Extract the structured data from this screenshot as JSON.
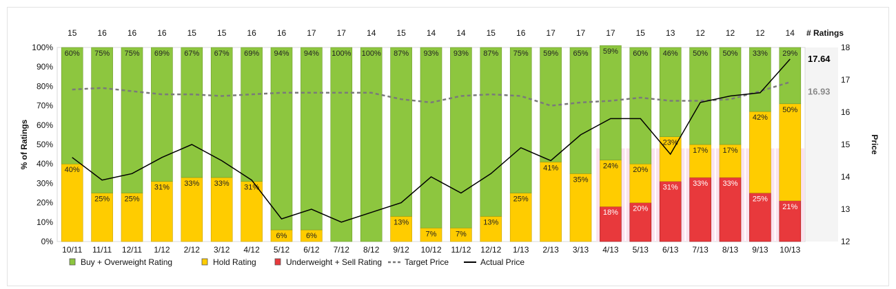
{
  "chart_data": {
    "type": "bar",
    "stacked": true,
    "categories": [
      "10/11",
      "11/11",
      "12/11",
      "1/12",
      "2/12",
      "3/12",
      "4/12",
      "5/12",
      "6/12",
      "7/12",
      "8/12",
      "9/12",
      "10/12",
      "11/12",
      "12/12",
      "1/13",
      "2/13",
      "3/13",
      "4/13",
      "5/13",
      "6/13",
      "7/13",
      "8/13",
      "9/13",
      "10/13"
    ],
    "num_ratings": [
      15,
      16,
      16,
      16,
      15,
      15,
      16,
      16,
      17,
      17,
      14,
      15,
      14,
      14,
      15,
      16,
      17,
      17,
      17,
      15,
      13,
      12,
      12,
      12,
      14
    ],
    "num_ratings_label": "# Ratings",
    "series": [
      {
        "name": "Buy + Overweight Rating",
        "color": "#8dc63f",
        "values": [
          60,
          75,
          75,
          69,
          67,
          67,
          69,
          94,
          94,
          100,
          100,
          87,
          93,
          93,
          87,
          75,
          59,
          65,
          59,
          60,
          46,
          50,
          50,
          33,
          29
        ],
        "labels": [
          "60%",
          "75%",
          "75%",
          "69%",
          "67%",
          "67%",
          "69%",
          "94%",
          "94%",
          "100%",
          "100%",
          "87%",
          "93%",
          "93%",
          "87%",
          "75%",
          "59%",
          "65%",
          "59%",
          "60%",
          "46%",
          "50%",
          "50%",
          "33%",
          "29%"
        ]
      },
      {
        "name": "Hold Rating",
        "color": "#ffcc00",
        "values": [
          40,
          25,
          25,
          31,
          33,
          33,
          31,
          6,
          6,
          0,
          0,
          13,
          7,
          7,
          13,
          25,
          41,
          35,
          24,
          20,
          23,
          17,
          17,
          42,
          50
        ],
        "labels": [
          "40%",
          "25%",
          "25%",
          "31%",
          "33%",
          "33%",
          "31%",
          "6%",
          "6%",
          "",
          "",
          "13%",
          "7%",
          "7%",
          "13%",
          "25%",
          "41%",
          "35%",
          "24%",
          "20%",
          "23%",
          "17%",
          "17%",
          "42%",
          "50%"
        ]
      },
      {
        "name": "Underweight + Sell Rating",
        "color": "#e8393c",
        "values": [
          0,
          0,
          0,
          0,
          0,
          0,
          0,
          0,
          0,
          0,
          0,
          0,
          0,
          0,
          0,
          0,
          0,
          0,
          18,
          20,
          31,
          33,
          33,
          25,
          21
        ],
        "labels": [
          "",
          "",
          "",
          "",
          "",
          "",
          "",
          "",
          "",
          "",
          "",
          "",
          "",
          "",
          "",
          "",
          "",
          "",
          "18%",
          "20%",
          "31%",
          "33%",
          "33%",
          "25%",
          "21%"
        ]
      }
    ],
    "target_price": {
      "name": "Target Price",
      "values": [
        16.7,
        16.75,
        16.65,
        16.55,
        16.55,
        16.5,
        16.55,
        16.6,
        16.6,
        16.6,
        16.6,
        16.4,
        16.3,
        16.5,
        16.55,
        16.5,
        16.2,
        16.3,
        16.35,
        16.45,
        16.35,
        16.35,
        16.4,
        16.65,
        16.93
      ]
    },
    "actual_price": {
      "name": "Actual Price",
      "values": [
        14.6,
        13.9,
        14.1,
        14.6,
        15.0,
        14.5,
        13.9,
        12.7,
        13.0,
        12.6,
        12.9,
        13.2,
        14.0,
        13.5,
        14.1,
        14.9,
        14.5,
        15.3,
        15.8,
        15.8,
        14.7,
        16.3,
        16.5,
        16.6,
        17.64
      ]
    },
    "target_price_label": "16.93",
    "actual_price_label": "17.64",
    "ylabel_left": "% of Ratings",
    "ylabel_right": "Price",
    "left_ticks": [
      "0%",
      "10%",
      "20%",
      "30%",
      "40%",
      "50%",
      "60%",
      "70%",
      "80%",
      "90%",
      "100%"
    ],
    "right_ticks": [
      "12",
      "13",
      "14",
      "15",
      "16",
      "17",
      "18"
    ],
    "ylim_left": [
      0,
      100
    ],
    "ylim_right": [
      12,
      18
    ],
    "legend": {
      "position": "bottom",
      "items": [
        {
          "label": "Buy + Overweight Rating",
          "kind": "box",
          "color": "#8dc63f"
        },
        {
          "label": "Hold Rating",
          "kind": "box",
          "color": "#ffcc00"
        },
        {
          "label": "Underweight + Sell Rating",
          "kind": "box",
          "color": "#e8393c"
        },
        {
          "label": "Target Price",
          "kind": "dash",
          "color": "#777777"
        },
        {
          "label": "Actual Price",
          "kind": "line",
          "color": "#000000"
        }
      ]
    }
  }
}
